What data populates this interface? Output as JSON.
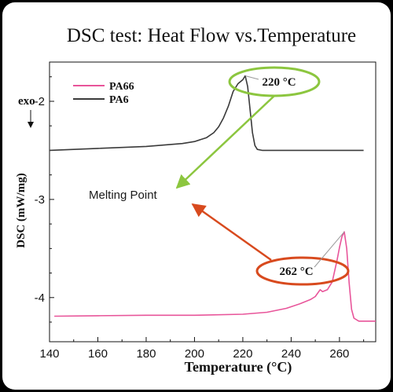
{
  "chart_data": {
    "type": "line",
    "title": "DSC test: Heat Flow vs.Temperature",
    "xlabel": "Temperature (°C)",
    "ylabel": "DSC (mW/mg)",
    "y_direction_label": "exo",
    "xlim": [
      140,
      275
    ],
    "ylim": [
      -4.45,
      -1.6
    ],
    "x_ticks": [
      140,
      160,
      180,
      200,
      220,
      240,
      260
    ],
    "y_ticks": [
      -2,
      -3,
      -4
    ],
    "x_tick_labels": [
      "140",
      "160",
      "180",
      "200",
      "220",
      "240",
      "260"
    ],
    "y_tick_labels": [
      "-2",
      "-3",
      "-4"
    ],
    "legend_position": "top-left",
    "series": [
      {
        "name": "PA66",
        "color": "#e8559a",
        "x": [
          142,
          160,
          180,
          200,
          220,
          230,
          238,
          244,
          248,
          250,
          252,
          253,
          255,
          257,
          259,
          260,
          261,
          262,
          263,
          264,
          265,
          266,
          268,
          270,
          275
        ],
        "y": [
          -4.19,
          -4.185,
          -4.18,
          -4.18,
          -4.17,
          -4.15,
          -4.11,
          -4.06,
          -4.02,
          -3.99,
          -3.92,
          -3.94,
          -3.92,
          -3.84,
          -3.62,
          -3.49,
          -3.38,
          -3.33,
          -3.5,
          -3.85,
          -4.12,
          -4.21,
          -4.24,
          -4.24,
          -4.24
        ]
      },
      {
        "name": "PA6",
        "color": "#3a3a3a",
        "x": [
          140,
          160,
          180,
          195,
          200,
          205,
          208,
          210,
          212,
          214,
          216,
          218,
          220,
          221,
          222,
          223,
          224,
          225,
          226,
          228,
          230,
          240,
          250,
          260,
          270
        ],
        "y": [
          -2.5,
          -2.48,
          -2.46,
          -2.43,
          -2.41,
          -2.37,
          -2.32,
          -2.26,
          -2.17,
          -2.05,
          -1.9,
          -1.82,
          -1.78,
          -1.74,
          -1.85,
          -2.08,
          -2.32,
          -2.45,
          -2.49,
          -2.5,
          -2.5,
          -2.5,
          -2.5,
          -2.5,
          -2.5
        ]
      }
    ],
    "annotations": [
      {
        "text": "Melting Point",
        "color": "#1a1a1a"
      },
      {
        "text": "220 °C",
        "x": 221,
        "y": -1.74,
        "ellipse_color": "#8cc63f",
        "arrow_color": "#8cc63f"
      },
      {
        "text": "262 °C",
        "x": 262,
        "y": -3.33,
        "ellipse_color": "#d84a1e",
        "arrow_color": "#d84a1e"
      }
    ]
  }
}
